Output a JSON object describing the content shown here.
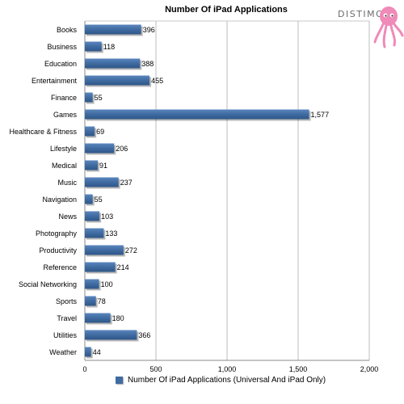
{
  "brand": {
    "logo_text": "DISTIMO",
    "logo_color": "#f08ab8"
  },
  "chart_data": {
    "type": "bar",
    "orientation": "horizontal",
    "title": "Number Of iPad Applications",
    "categories": [
      "Books",
      "Business",
      "Education",
      "Entertainment",
      "Finance",
      "Games",
      "Healthcare & Fitness",
      "Lifestyle",
      "Medical",
      "Music",
      "Navigation",
      "News",
      "Photography",
      "Productivity",
      "Reference",
      "Social Networking",
      "Sports",
      "Travel",
      "Utilities",
      "Weather"
    ],
    "series": [
      {
        "name": "Number Of iPad Applications (Universal And iPad Only)",
        "color": "#3f6ba1",
        "values": [
          396,
          118,
          388,
          455,
          55,
          1577,
          69,
          206,
          91,
          237,
          55,
          103,
          133,
          272,
          214,
          100,
          78,
          180,
          366,
          44
        ],
        "labels": [
          "396",
          "118",
          "388",
          "455",
          "55",
          "1,577",
          "69",
          "206",
          "91",
          "237",
          "55",
          "103",
          "133",
          "272",
          "214",
          "100",
          "78",
          "180",
          "366",
          "44"
        ]
      }
    ],
    "xlim": [
      0,
      2000
    ],
    "xticks": [
      0,
      500,
      1000,
      1500,
      2000
    ],
    "xtick_labels": [
      "0",
      "500",
      "1,000",
      "1,500",
      "2,000"
    ],
    "grid": true,
    "legend": "bottom"
  }
}
